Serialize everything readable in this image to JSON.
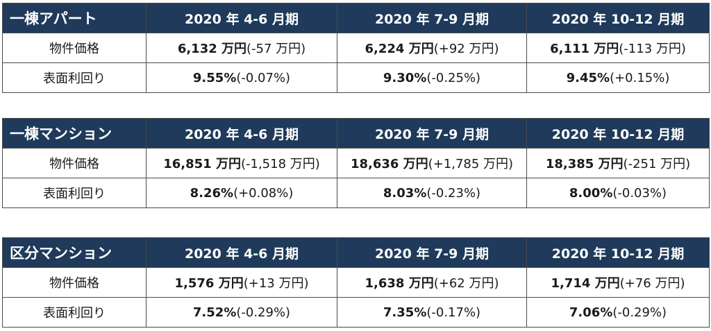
{
  "tables": [
    {
      "type": "一棟アパート",
      "periods": [
        "2020 年 4-6 月期",
        "2020 年 7-9 月期",
        "2020 年 10-12 月期"
      ],
      "rows": [
        {
          "label": "物件価格",
          "cells": [
            {
              "value": "6,132 万円",
              "change": "(-57 万円)"
            },
            {
              "value": "6,224 万円",
              "change": "(+92 万円)"
            },
            {
              "value": "6,111 万円",
              "change": "(-113 万円)"
            }
          ]
        },
        {
          "label": "表面利回り",
          "cells": [
            {
              "value": "9.55%",
              "change": "(-0.07%)"
            },
            {
              "value": "9.30%",
              "change": "(-0.25%)"
            },
            {
              "value": "9.45%",
              "change": "(+0.15%)"
            }
          ]
        }
      ]
    },
    {
      "type": "一棟マンション",
      "periods": [
        "2020 年 4-6 月期",
        "2020 年 7-9 月期",
        "2020 年 10-12 月期"
      ],
      "rows": [
        {
          "label": "物件価格",
          "cells": [
            {
              "value": "16,851 万円",
              "change": "(-1,518 万円)"
            },
            {
              "value": "18,636 万円",
              "change": "(+1,785 万円)"
            },
            {
              "value": "18,385 万円",
              "change": "(-251 万円)"
            }
          ]
        },
        {
          "label": "表面利回り",
          "cells": [
            {
              "value": "8.26%",
              "change": "(+0.08%)"
            },
            {
              "value": "8.03%",
              "change": "(-0.23%)"
            },
            {
              "value": "8.00%",
              "change": "(-0.03%)"
            }
          ]
        }
      ]
    },
    {
      "type": "区分マンション",
      "periods": [
        "2020 年 4-6 月期",
        "2020 年 7-9 月期",
        "2020 年 10-12 月期"
      ],
      "rows": [
        {
          "label": "物件価格",
          "cells": [
            {
              "value": "1,576 万円",
              "change": "(+13 万円)"
            },
            {
              "value": "1,638 万円",
              "change": "(+62 万円)"
            },
            {
              "value": "1,714 万円",
              "change": "(+76 万円)"
            }
          ]
        },
        {
          "label": "表面利回り",
          "cells": [
            {
              "value": "7.52%",
              "change": "(-0.29%)"
            },
            {
              "value": "7.35%",
              "change": "(-0.17%)"
            },
            {
              "value": "7.06%",
              "change": "(-0.29%)"
            }
          ]
        }
      ]
    }
  ]
}
